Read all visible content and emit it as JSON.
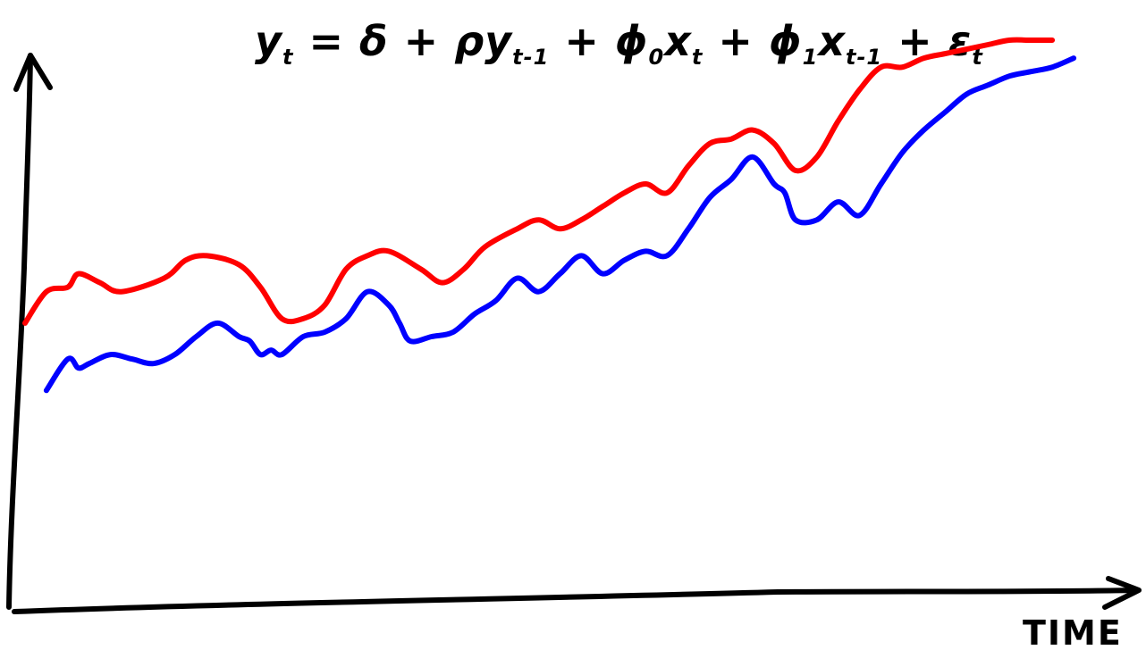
{
  "chart_data": {
    "type": "line",
    "title_parts": {
      "y": "y",
      "y_sub": "t",
      "eq": " = δ + ρ",
      "y2": "y",
      "y2_sub": "t-1",
      "plus1": " + ",
      "phi0": "ϕ",
      "phi0_sub": "0",
      "x0": "x",
      "x0_sub": "t",
      "plus2": " + ",
      "phi1": "ϕ",
      "phi1_sub": "1",
      "x1": "x",
      "x1_sub": "t-1",
      "plus3": " + ",
      "eps": "ε",
      "eps_sub": "t"
    },
    "xlabel": "TIME",
    "ylabel": "",
    "xlim": [
      0,
      100
    ],
    "ylim": [
      0,
      100
    ],
    "grid": false,
    "legend": "none",
    "series": [
      {
        "color": "#ff0000",
        "x": [
          0,
          2,
          4,
          5,
          7,
          9,
          13,
          15,
          17,
          20,
          22,
          24,
          26,
          28,
          30,
          32,
          34,
          37,
          39,
          41,
          43,
          46,
          48,
          50,
          52,
          54,
          56,
          58,
          60,
          62,
          64,
          66,
          68,
          70,
          72,
          74,
          76,
          78,
          80,
          82,
          84,
          86,
          88,
          90,
          92,
          94,
          96
        ],
        "y": [
          37,
          44,
          45,
          48,
          46,
          44,
          47,
          51,
          52,
          50,
          45,
          38,
          38,
          41,
          49,
          52,
          53,
          49,
          46,
          49,
          54,
          58,
          60,
          58,
          60,
          63,
          66,
          68,
          66,
          72,
          77,
          78,
          80,
          77,
          71,
          74,
          82,
          89,
          94,
          94,
          96,
          97,
          98,
          99,
          100,
          100,
          100
        ]
      },
      {
        "color": "#0000ff",
        "x": [
          2,
          4,
          5,
          6,
          8,
          10,
          12,
          14,
          16,
          18,
          20,
          21,
          22,
          23,
          24,
          26,
          28,
          30,
          32,
          34,
          35,
          36,
          38,
          40,
          42,
          44,
          46,
          48,
          50,
          52,
          54,
          56,
          58,
          60,
          62,
          64,
          66,
          68,
          70,
          71,
          72,
          74,
          76,
          78,
          80,
          82,
          84,
          86,
          88,
          90,
          92,
          94,
          96,
          98
        ],
        "y": [
          22,
          29,
          27,
          28,
          30,
          29,
          28,
          30,
          34,
          37,
          34,
          33,
          30,
          31,
          30,
          34,
          35,
          38,
          44,
          41,
          37,
          33,
          34,
          35,
          39,
          42,
          47,
          44,
          48,
          52,
          48,
          51,
          53,
          52,
          58,
          65,
          69,
          74,
          68,
          66,
          60,
          60,
          64,
          61,
          68,
          75,
          80,
          84,
          88,
          90,
          92,
          93,
          94,
          96
        ]
      }
    ]
  }
}
